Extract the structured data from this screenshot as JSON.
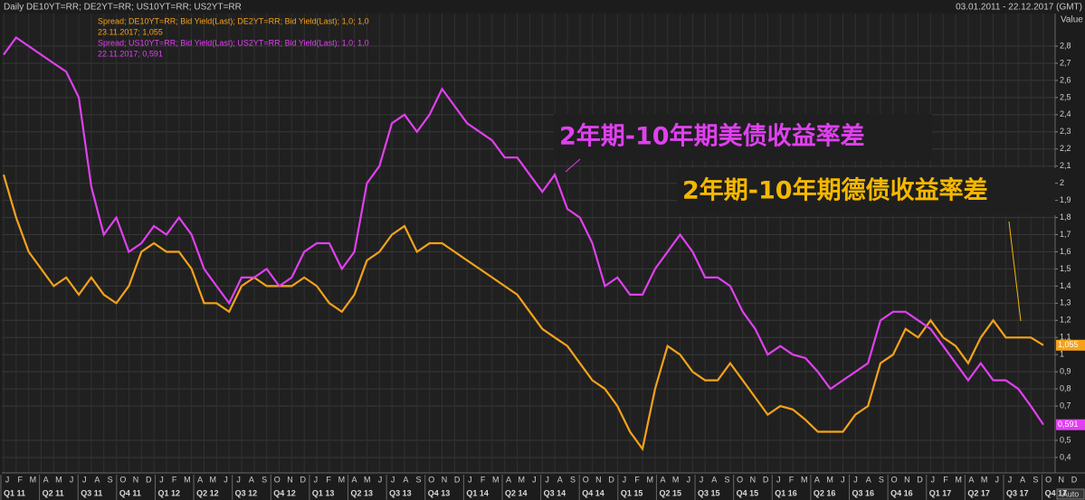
{
  "header": {
    "title": "Daily DE10YT=RR; DE2YT=RR; US10YT=RR; US2YT=RR",
    "range": "03.01.2011 - 22.12.2017 (GMT)",
    "auto_button": "Auto"
  },
  "chart_data": {
    "type": "line",
    "y_axis_title": "Value",
    "categories": [
      "J",
      "F",
      "M",
      "A",
      "M",
      "J",
      "J",
      "A",
      "S",
      "O",
      "N",
      "D",
      "J",
      "F",
      "M",
      "A",
      "M",
      "J",
      "J",
      "A",
      "S",
      "O",
      "N",
      "D",
      "J",
      "F",
      "M",
      "A",
      "M",
      "J",
      "J",
      "A",
      "S",
      "O",
      "N",
      "D",
      "J",
      "F",
      "M",
      "A",
      "M",
      "J",
      "J",
      "A",
      "S",
      "O",
      "N",
      "D",
      "J",
      "F",
      "M",
      "A",
      "M",
      "J",
      "J",
      "A",
      "S",
      "O",
      "N",
      "D",
      "J",
      "F",
      "M",
      "A",
      "M",
      "J",
      "J",
      "A",
      "S",
      "O",
      "N",
      "D",
      "J",
      "F",
      "M",
      "A",
      "M",
      "J",
      "J",
      "A",
      "S",
      "O",
      "N",
      "D"
    ],
    "quarters": [
      "Q1 11",
      "Q2 11",
      "Q3 11",
      "Q4 11",
      "Q1 12",
      "Q2 12",
      "Q3 12",
      "Q4 12",
      "Q1 13",
      "Q2 13",
      "Q3 13",
      "Q4 13",
      "Q1 14",
      "Q2 14",
      "Q3 14",
      "Q4 14",
      "Q1 15",
      "Q2 15",
      "Q3 15",
      "Q4 15",
      "Q1 16",
      "Q2 16",
      "Q3 16",
      "Q4 16",
      "Q1 17",
      "Q2 17",
      "Q3 17",
      "Q4 17"
    ],
    "series": [
      {
        "name": "Spread; DE10YT=RR; Bid Yield(Last); DE2YT=RR; Bid Yield(Last);  1,0; 1,0",
        "last_point": "23.11.2017; 1,055",
        "color": "#f5a21b",
        "end_tag": {
          "value": 1.055,
          "label": "1,055"
        },
        "values": [
          2.05,
          1.8,
          1.6,
          1.5,
          1.4,
          1.45,
          1.35,
          1.45,
          1.35,
          1.3,
          1.4,
          1.6,
          1.65,
          1.6,
          1.6,
          1.5,
          1.3,
          1.3,
          1.25,
          1.4,
          1.45,
          1.4,
          1.4,
          1.4,
          1.45,
          1.4,
          1.3,
          1.25,
          1.35,
          1.55,
          1.6,
          1.7,
          1.75,
          1.6,
          1.65,
          1.65,
          1.6,
          1.55,
          1.5,
          1.45,
          1.4,
          1.35,
          1.25,
          1.15,
          1.1,
          1.05,
          0.95,
          0.85,
          0.8,
          0.7,
          0.55,
          0.45,
          0.8,
          1.05,
          1.0,
          0.9,
          0.85,
          0.85,
          0.95,
          0.85,
          0.75,
          0.65,
          0.7,
          0.68,
          0.62,
          0.55,
          0.55,
          0.55,
          0.65,
          0.7,
          0.95,
          1.0,
          1.15,
          1.1,
          1.2,
          1.1,
          1.05,
          0.95,
          1.1,
          1.2,
          1.1,
          1.1,
          1.1,
          1.055
        ]
      },
      {
        "name": "Spread; US10YT=RR; Bid Yield(Last); US2YT=RR; Bid Yield(Last);  1,0; 1,0",
        "last_point": "22.11.2017; 0,591",
        "color": "#e040f0",
        "end_tag": {
          "value": 0.591,
          "label": "0,591"
        },
        "values": [
          2.75,
          2.85,
          2.8,
          2.75,
          2.7,
          2.65,
          2.5,
          1.98,
          1.7,
          1.8,
          1.6,
          1.65,
          1.75,
          1.7,
          1.8,
          1.7,
          1.5,
          1.4,
          1.3,
          1.45,
          1.45,
          1.5,
          1.4,
          1.45,
          1.6,
          1.65,
          1.65,
          1.5,
          1.6,
          2.0,
          2.1,
          2.35,
          2.4,
          2.3,
          2.4,
          2.55,
          2.45,
          2.35,
          2.3,
          2.25,
          2.15,
          2.15,
          2.05,
          1.95,
          2.05,
          1.85,
          1.8,
          1.65,
          1.4,
          1.45,
          1.35,
          1.35,
          1.5,
          1.6,
          1.7,
          1.6,
          1.45,
          1.45,
          1.4,
          1.25,
          1.15,
          1.0,
          1.05,
          1.0,
          0.98,
          0.9,
          0.8,
          0.85,
          0.9,
          0.95,
          1.2,
          1.25,
          1.25,
          1.2,
          1.15,
          1.05,
          0.95,
          0.85,
          0.95,
          0.85,
          0.85,
          0.8,
          0.7,
          0.591
        ]
      }
    ],
    "annotations": [
      {
        "text": "2年期-10年期美债收益率差",
        "color": "#e040f0"
      },
      {
        "text": "2年期-10年期德债收益率差",
        "color": "#f5b800"
      }
    ],
    "ylim": [
      0.31,
      2.99
    ],
    "yticks": [
      {
        "value": 0.4,
        "label": "0,4"
      },
      {
        "value": 0.5,
        "label": "0,5"
      },
      {
        "value": 0.7,
        "label": "0,7"
      },
      {
        "value": 0.8,
        "label": "0,8"
      },
      {
        "value": 0.9,
        "label": "0,9"
      },
      1,
      {
        "value": 1.1,
        "label": "1,1"
      },
      {
        "value": 1.2,
        "label": "1,2"
      },
      {
        "value": 1.3,
        "label": "1,3"
      },
      {
        "value": 1.4,
        "label": "1,4"
      },
      {
        "value": 1.5,
        "label": "1,5"
      },
      {
        "value": 1.6,
        "label": "1,6"
      },
      {
        "value": 1.7,
        "label": "1,7"
      },
      {
        "value": 1.8,
        "label": "1,8"
      },
      {
        "value": 1.9,
        "label": "1,9"
      },
      2,
      {
        "value": 2.1,
        "label": "2,1"
      },
      {
        "value": 2.2,
        "label": "2,2"
      },
      {
        "value": 2.3,
        "label": "2,3"
      },
      {
        "value": 2.4,
        "label": "2,4"
      },
      {
        "value": 2.5,
        "label": "2,5"
      },
      {
        "value": 2.6,
        "label": "2,6"
      },
      {
        "value": 2.7,
        "label": "2,7"
      },
      {
        "value": 2.8,
        "label": "2,8"
      }
    ],
    "grid": true
  }
}
